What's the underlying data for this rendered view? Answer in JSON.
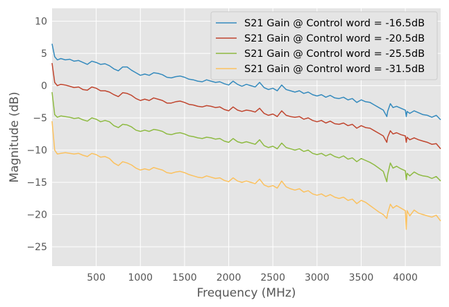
{
  "chart_data": {
    "type": "line",
    "title": "",
    "xlabel": "Frequency (MHz)",
    "ylabel": "Magnitude (dB)",
    "xlim": [
      0,
      4400
    ],
    "ylim": [
      -28,
      12
    ],
    "xticks": [
      500,
      1000,
      1500,
      2000,
      2500,
      3000,
      3500,
      4000
    ],
    "xtick_labels": [
      "500",
      "1000",
      "1500",
      "2000",
      "2500",
      "3000",
      "3500",
      "4000"
    ],
    "yticks": [
      10,
      5,
      0,
      -5,
      -10,
      -15,
      -20,
      -25
    ],
    "ytick_labels": [
      "10",
      "5",
      "0",
      "−5",
      "−10",
      "−15",
      "−20",
      "−25"
    ],
    "grid": true,
    "legend": {
      "position": "top-right"
    },
    "colors": {
      "background": "#e5e5e5",
      "grid": "#ffffff",
      "text": "#555555"
    },
    "series": [
      {
        "name": "S21 Gain @ Control word = -16.5dB",
        "color": "#348abd",
        "x": [
          0,
          30,
          60,
          100,
          150,
          200,
          250,
          300,
          350,
          400,
          450,
          500,
          550,
          600,
          650,
          700,
          750,
          800,
          850,
          900,
          950,
          1000,
          1050,
          1100,
          1150,
          1200,
          1250,
          1300,
          1350,
          1400,
          1450,
          1500,
          1550,
          1600,
          1650,
          1700,
          1750,
          1800,
          1850,
          1900,
          1950,
          2000,
          2050,
          2100,
          2150,
          2200,
          2250,
          2300,
          2350,
          2400,
          2450,
          2500,
          2550,
          2600,
          2650,
          2700,
          2750,
          2800,
          2850,
          2900,
          2950,
          3000,
          3050,
          3100,
          3150,
          3200,
          3250,
          3300,
          3350,
          3400,
          3450,
          3500,
          3550,
          3600,
          3650,
          3700,
          3750,
          3790,
          3800,
          3830,
          3860,
          3900,
          3950,
          4000,
          4010,
          4020,
          4050,
          4100,
          4150,
          4200,
          4250,
          4300,
          4350,
          4400
        ],
        "y": [
          6.5,
          4.5,
          4.0,
          4.2,
          4.0,
          4.1,
          3.8,
          3.9,
          3.6,
          3.3,
          3.8,
          3.6,
          3.3,
          3.4,
          3.1,
          2.6,
          2.3,
          2.9,
          2.9,
          2.4,
          2.0,
          1.6,
          1.8,
          1.6,
          2.0,
          1.9,
          1.7,
          1.3,
          1.2,
          1.4,
          1.5,
          1.3,
          1.0,
          0.9,
          0.7,
          0.6,
          0.9,
          0.7,
          0.5,
          0.6,
          0.3,
          0.1,
          0.7,
          0.2,
          -0.1,
          0.2,
          0.0,
          -0.2,
          0.5,
          -0.3,
          -0.6,
          -0.4,
          -0.8,
          0.1,
          -0.6,
          -0.8,
          -1.0,
          -0.8,
          -1.2,
          -1.0,
          -1.4,
          -1.6,
          -1.4,
          -1.8,
          -1.5,
          -1.9,
          -2.0,
          -1.8,
          -2.2,
          -2.0,
          -2.6,
          -2.2,
          -2.5,
          -2.6,
          -3.0,
          -3.4,
          -3.8,
          -4.8,
          -4.0,
          -2.8,
          -3.4,
          -3.2,
          -3.5,
          -3.8,
          -4.8,
          -4.0,
          -4.3,
          -3.9,
          -4.2,
          -4.5,
          -4.6,
          -4.9,
          -4.6,
          -5.3
        ]
      },
      {
        "name": "S21 Gain @ Control word = -20.5dB",
        "color": "#c0452e",
        "x": [
          0,
          30,
          60,
          100,
          150,
          200,
          250,
          300,
          350,
          400,
          450,
          500,
          550,
          600,
          650,
          700,
          750,
          800,
          850,
          900,
          950,
          1000,
          1050,
          1100,
          1150,
          1200,
          1250,
          1300,
          1350,
          1400,
          1450,
          1500,
          1550,
          1600,
          1650,
          1700,
          1750,
          1800,
          1850,
          1900,
          1950,
          2000,
          2050,
          2100,
          2150,
          2200,
          2250,
          2300,
          2350,
          2400,
          2450,
          2500,
          2550,
          2600,
          2650,
          2700,
          2750,
          2800,
          2850,
          2900,
          2950,
          3000,
          3050,
          3100,
          3150,
          3200,
          3250,
          3300,
          3350,
          3400,
          3450,
          3500,
          3550,
          3600,
          3650,
          3700,
          3750,
          3790,
          3800,
          3830,
          3860,
          3900,
          3950,
          4000,
          4010,
          4020,
          4050,
          4100,
          4150,
          4200,
          4250,
          4300,
          4350,
          4400
        ],
        "y": [
          3.5,
          0.5,
          0.0,
          0.2,
          0.1,
          -0.1,
          -0.3,
          -0.2,
          -0.6,
          -0.7,
          -0.2,
          -0.4,
          -0.8,
          -0.8,
          -1.0,
          -1.4,
          -1.7,
          -1.1,
          -1.2,
          -1.5,
          -2.0,
          -2.3,
          -2.1,
          -2.3,
          -1.9,
          -2.1,
          -2.3,
          -2.7,
          -2.7,
          -2.5,
          -2.4,
          -2.6,
          -2.9,
          -3.0,
          -3.2,
          -3.3,
          -3.1,
          -3.2,
          -3.4,
          -3.3,
          -3.7,
          -3.9,
          -3.3,
          -3.8,
          -4.0,
          -3.8,
          -3.9,
          -4.1,
          -3.5,
          -4.3,
          -4.6,
          -4.4,
          -4.8,
          -3.9,
          -4.6,
          -4.8,
          -4.9,
          -4.8,
          -5.2,
          -5.0,
          -5.4,
          -5.6,
          -5.4,
          -5.8,
          -5.5,
          -5.9,
          -6.0,
          -5.8,
          -6.2,
          -6.0,
          -6.6,
          -6.2,
          -6.5,
          -6.6,
          -7.0,
          -7.4,
          -7.8,
          -8.8,
          -8.0,
          -7.0,
          -7.5,
          -7.3,
          -7.6,
          -7.8,
          -8.8,
          -8.0,
          -8.4,
          -8.1,
          -8.4,
          -8.6,
          -8.8,
          -9.1,
          -9.0,
          -9.8
        ]
      },
      {
        "name": "S21 Gain @ Control word = -25.5dB",
        "color": "#8eba42",
        "x": [
          0,
          30,
          60,
          100,
          150,
          200,
          250,
          300,
          350,
          400,
          450,
          500,
          550,
          600,
          650,
          700,
          750,
          800,
          850,
          900,
          950,
          1000,
          1050,
          1100,
          1150,
          1200,
          1250,
          1300,
          1350,
          1400,
          1450,
          1500,
          1550,
          1600,
          1650,
          1700,
          1750,
          1800,
          1850,
          1900,
          1950,
          2000,
          2050,
          2100,
          2150,
          2200,
          2250,
          2300,
          2350,
          2400,
          2450,
          2500,
          2550,
          2600,
          2650,
          2700,
          2750,
          2800,
          2850,
          2900,
          2950,
          3000,
          3050,
          3100,
          3150,
          3200,
          3250,
          3300,
          3350,
          3400,
          3450,
          3500,
          3550,
          3600,
          3650,
          3700,
          3750,
          3790,
          3800,
          3830,
          3860,
          3900,
          3950,
          4000,
          4010,
          4020,
          4050,
          4100,
          4150,
          4200,
          4250,
          4300,
          4350,
          4400
        ],
        "y": [
          -1.0,
          -4.5,
          -4.9,
          -4.7,
          -4.8,
          -4.9,
          -5.1,
          -5.0,
          -5.3,
          -5.5,
          -5.0,
          -5.2,
          -5.6,
          -5.4,
          -5.6,
          -6.2,
          -6.5,
          -6.0,
          -6.1,
          -6.4,
          -6.9,
          -7.1,
          -6.9,
          -7.1,
          -6.8,
          -6.9,
          -7.1,
          -7.5,
          -7.6,
          -7.4,
          -7.3,
          -7.5,
          -7.8,
          -7.9,
          -8.1,
          -8.2,
          -8.0,
          -8.1,
          -8.3,
          -8.2,
          -8.6,
          -8.8,
          -8.2,
          -8.7,
          -8.9,
          -8.7,
          -8.9,
          -9.1,
          -8.4,
          -9.3,
          -9.6,
          -9.4,
          -9.8,
          -8.9,
          -9.6,
          -9.8,
          -10.0,
          -9.8,
          -10.2,
          -10.0,
          -10.5,
          -10.7,
          -10.5,
          -10.9,
          -10.6,
          -11.0,
          -11.2,
          -10.9,
          -11.4,
          -11.2,
          -11.8,
          -11.3,
          -11.6,
          -11.9,
          -12.3,
          -12.8,
          -13.3,
          -14.9,
          -13.8,
          -12.0,
          -12.8,
          -12.5,
          -12.9,
          -13.2,
          -14.6,
          -13.6,
          -14.0,
          -13.4,
          -13.8,
          -14.0,
          -14.1,
          -14.4,
          -14.1,
          -14.8
        ]
      },
      {
        "name": "S21 Gain @ Control word = -31.5dB",
        "color": "#fbc15e",
        "x": [
          0,
          30,
          60,
          100,
          150,
          200,
          250,
          300,
          350,
          400,
          450,
          500,
          550,
          600,
          650,
          700,
          750,
          800,
          850,
          900,
          950,
          1000,
          1050,
          1100,
          1150,
          1200,
          1250,
          1300,
          1350,
          1400,
          1450,
          1500,
          1550,
          1600,
          1650,
          1700,
          1750,
          1800,
          1850,
          1900,
          1950,
          2000,
          2050,
          2100,
          2150,
          2200,
          2250,
          2300,
          2350,
          2400,
          2450,
          2500,
          2550,
          2600,
          2650,
          2700,
          2750,
          2800,
          2850,
          2900,
          2950,
          3000,
          3050,
          3100,
          3150,
          3200,
          3250,
          3300,
          3350,
          3400,
          3450,
          3500,
          3550,
          3600,
          3650,
          3700,
          3750,
          3790,
          3800,
          3830,
          3860,
          3900,
          3950,
          4000,
          4010,
          4020,
          4050,
          4100,
          4150,
          4200,
          4250,
          4300,
          4350,
          4400
        ],
        "y": [
          -5.5,
          -10.0,
          -10.6,
          -10.5,
          -10.4,
          -10.5,
          -10.6,
          -10.5,
          -10.8,
          -11.0,
          -10.5,
          -10.7,
          -11.1,
          -11.0,
          -11.3,
          -12.0,
          -12.4,
          -11.8,
          -12.0,
          -12.3,
          -12.8,
          -13.1,
          -12.9,
          -13.1,
          -12.7,
          -12.9,
          -13.1,
          -13.5,
          -13.6,
          -13.4,
          -13.3,
          -13.5,
          -13.8,
          -14.0,
          -14.2,
          -14.3,
          -14.0,
          -14.2,
          -14.4,
          -14.3,
          -14.7,
          -14.9,
          -14.3,
          -14.8,
          -15.0,
          -14.8,
          -15.0,
          -15.2,
          -14.5,
          -15.4,
          -15.7,
          -15.5,
          -15.9,
          -14.8,
          -15.7,
          -16.0,
          -16.2,
          -16.0,
          -16.5,
          -16.3,
          -16.8,
          -17.0,
          -16.8,
          -17.2,
          -16.9,
          -17.3,
          -17.5,
          -17.3,
          -17.8,
          -17.6,
          -18.3,
          -17.8,
          -18.1,
          -18.6,
          -19.1,
          -19.6,
          -20.0,
          -20.6,
          -19.8,
          -18.4,
          -19.0,
          -18.6,
          -19.0,
          -19.4,
          -22.3,
          -19.4,
          -20.2,
          -19.3,
          -19.8,
          -20.0,
          -20.2,
          -20.4,
          -20.1,
          -21.0
        ]
      }
    ]
  }
}
